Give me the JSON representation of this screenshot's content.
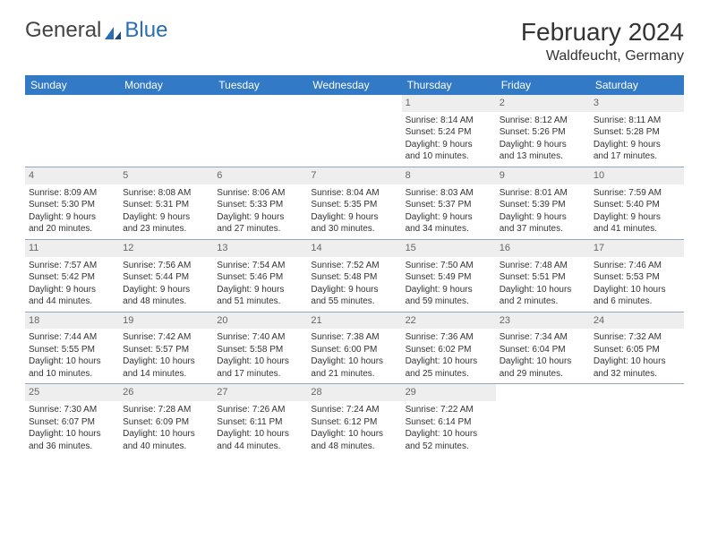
{
  "logo": {
    "text_general": "General",
    "text_blue": "Blue"
  },
  "header": {
    "month_title": "February 2024",
    "location": "Waldfeucht, Germany"
  },
  "colors": {
    "header_bg": "#3279c6",
    "header_text": "#ffffff",
    "daynum_bg": "#eeeeee",
    "daynum_text": "#666666",
    "body_text": "#333333",
    "grid_line": "#8fa8c0",
    "logo_dark": "#444444",
    "logo_blue": "#2a6db5"
  },
  "days_of_week": [
    "Sunday",
    "Monday",
    "Tuesday",
    "Wednesday",
    "Thursday",
    "Friday",
    "Saturday"
  ],
  "weeks": [
    [
      null,
      null,
      null,
      null,
      {
        "n": "1",
        "sr": "Sunrise: 8:14 AM",
        "ss": "Sunset: 5:24 PM",
        "d1": "Daylight: 9 hours",
        "d2": "and 10 minutes."
      },
      {
        "n": "2",
        "sr": "Sunrise: 8:12 AM",
        "ss": "Sunset: 5:26 PM",
        "d1": "Daylight: 9 hours",
        "d2": "and 13 minutes."
      },
      {
        "n": "3",
        "sr": "Sunrise: 8:11 AM",
        "ss": "Sunset: 5:28 PM",
        "d1": "Daylight: 9 hours",
        "d2": "and 17 minutes."
      }
    ],
    [
      {
        "n": "4",
        "sr": "Sunrise: 8:09 AM",
        "ss": "Sunset: 5:30 PM",
        "d1": "Daylight: 9 hours",
        "d2": "and 20 minutes."
      },
      {
        "n": "5",
        "sr": "Sunrise: 8:08 AM",
        "ss": "Sunset: 5:31 PM",
        "d1": "Daylight: 9 hours",
        "d2": "and 23 minutes."
      },
      {
        "n": "6",
        "sr": "Sunrise: 8:06 AM",
        "ss": "Sunset: 5:33 PM",
        "d1": "Daylight: 9 hours",
        "d2": "and 27 minutes."
      },
      {
        "n": "7",
        "sr": "Sunrise: 8:04 AM",
        "ss": "Sunset: 5:35 PM",
        "d1": "Daylight: 9 hours",
        "d2": "and 30 minutes."
      },
      {
        "n": "8",
        "sr": "Sunrise: 8:03 AM",
        "ss": "Sunset: 5:37 PM",
        "d1": "Daylight: 9 hours",
        "d2": "and 34 minutes."
      },
      {
        "n": "9",
        "sr": "Sunrise: 8:01 AM",
        "ss": "Sunset: 5:39 PM",
        "d1": "Daylight: 9 hours",
        "d2": "and 37 minutes."
      },
      {
        "n": "10",
        "sr": "Sunrise: 7:59 AM",
        "ss": "Sunset: 5:40 PM",
        "d1": "Daylight: 9 hours",
        "d2": "and 41 minutes."
      }
    ],
    [
      {
        "n": "11",
        "sr": "Sunrise: 7:57 AM",
        "ss": "Sunset: 5:42 PM",
        "d1": "Daylight: 9 hours",
        "d2": "and 44 minutes."
      },
      {
        "n": "12",
        "sr": "Sunrise: 7:56 AM",
        "ss": "Sunset: 5:44 PM",
        "d1": "Daylight: 9 hours",
        "d2": "and 48 minutes."
      },
      {
        "n": "13",
        "sr": "Sunrise: 7:54 AM",
        "ss": "Sunset: 5:46 PM",
        "d1": "Daylight: 9 hours",
        "d2": "and 51 minutes."
      },
      {
        "n": "14",
        "sr": "Sunrise: 7:52 AM",
        "ss": "Sunset: 5:48 PM",
        "d1": "Daylight: 9 hours",
        "d2": "and 55 minutes."
      },
      {
        "n": "15",
        "sr": "Sunrise: 7:50 AM",
        "ss": "Sunset: 5:49 PM",
        "d1": "Daylight: 9 hours",
        "d2": "and 59 minutes."
      },
      {
        "n": "16",
        "sr": "Sunrise: 7:48 AM",
        "ss": "Sunset: 5:51 PM",
        "d1": "Daylight: 10 hours",
        "d2": "and 2 minutes."
      },
      {
        "n": "17",
        "sr": "Sunrise: 7:46 AM",
        "ss": "Sunset: 5:53 PM",
        "d1": "Daylight: 10 hours",
        "d2": "and 6 minutes."
      }
    ],
    [
      {
        "n": "18",
        "sr": "Sunrise: 7:44 AM",
        "ss": "Sunset: 5:55 PM",
        "d1": "Daylight: 10 hours",
        "d2": "and 10 minutes."
      },
      {
        "n": "19",
        "sr": "Sunrise: 7:42 AM",
        "ss": "Sunset: 5:57 PM",
        "d1": "Daylight: 10 hours",
        "d2": "and 14 minutes."
      },
      {
        "n": "20",
        "sr": "Sunrise: 7:40 AM",
        "ss": "Sunset: 5:58 PM",
        "d1": "Daylight: 10 hours",
        "d2": "and 17 minutes."
      },
      {
        "n": "21",
        "sr": "Sunrise: 7:38 AM",
        "ss": "Sunset: 6:00 PM",
        "d1": "Daylight: 10 hours",
        "d2": "and 21 minutes."
      },
      {
        "n": "22",
        "sr": "Sunrise: 7:36 AM",
        "ss": "Sunset: 6:02 PM",
        "d1": "Daylight: 10 hours",
        "d2": "and 25 minutes."
      },
      {
        "n": "23",
        "sr": "Sunrise: 7:34 AM",
        "ss": "Sunset: 6:04 PM",
        "d1": "Daylight: 10 hours",
        "d2": "and 29 minutes."
      },
      {
        "n": "24",
        "sr": "Sunrise: 7:32 AM",
        "ss": "Sunset: 6:05 PM",
        "d1": "Daylight: 10 hours",
        "d2": "and 32 minutes."
      }
    ],
    [
      {
        "n": "25",
        "sr": "Sunrise: 7:30 AM",
        "ss": "Sunset: 6:07 PM",
        "d1": "Daylight: 10 hours",
        "d2": "and 36 minutes."
      },
      {
        "n": "26",
        "sr": "Sunrise: 7:28 AM",
        "ss": "Sunset: 6:09 PM",
        "d1": "Daylight: 10 hours",
        "d2": "and 40 minutes."
      },
      {
        "n": "27",
        "sr": "Sunrise: 7:26 AM",
        "ss": "Sunset: 6:11 PM",
        "d1": "Daylight: 10 hours",
        "d2": "and 44 minutes."
      },
      {
        "n": "28",
        "sr": "Sunrise: 7:24 AM",
        "ss": "Sunset: 6:12 PM",
        "d1": "Daylight: 10 hours",
        "d2": "and 48 minutes."
      },
      {
        "n": "29",
        "sr": "Sunrise: 7:22 AM",
        "ss": "Sunset: 6:14 PM",
        "d1": "Daylight: 10 hours",
        "d2": "and 52 minutes."
      },
      null,
      null
    ]
  ]
}
